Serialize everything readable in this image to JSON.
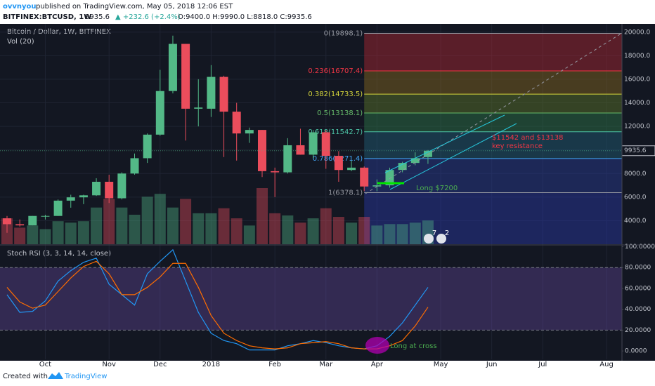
{
  "header": {
    "author": "ovvnyou",
    "published": "published on TradingView.com, May 05, 2018 12:06 EST",
    "symbol": "BITFINEX:BTCUSD, 1W",
    "price": "9935.6",
    "change": "▲ +232.6 (+2.4%)",
    "ohlc": "O:9400.0 H:9990.0 L:8818.0 C:9935.6"
  },
  "footer": {
    "created": "Created with",
    "brand": "TradingView"
  },
  "chart_data": [
    {
      "type": "candlestick",
      "title": "Bitcoin / Dollar, 1W, BITFINEX",
      "volume_label": "Vol (20)",
      "open": [
        4200,
        3700,
        3600,
        4400,
        4400,
        5700,
        5980,
        6150,
        7300,
        5900,
        8000,
        9300,
        11300,
        15000,
        19000,
        13500,
        13500,
        16200,
        13250,
        11400,
        11700,
        8200,
        8100,
        10400,
        9600,
        11500,
        9500,
        8300,
        8500,
        6900,
        7000,
        8300,
        8900,
        9400
      ],
      "high": [
        4400,
        4100,
        4400,
        4500,
        5800,
        6200,
        6200,
        7600,
        7900,
        8100,
        9700,
        11400,
        16800,
        19700,
        19000,
        16000,
        17200,
        16300,
        14000,
        11900,
        11700,
        8500,
        11000,
        11800,
        11700,
        11700,
        9900,
        9100,
        8600,
        7500,
        8500,
        9000,
        9800,
        9990
      ],
      "low": [
        2970,
        3500,
        3600,
        4100,
        4400,
        5100,
        5400,
        6100,
        5500,
        5800,
        7900,
        8900,
        11200,
        14800,
        10800,
        12000,
        12800,
        9400,
        9100,
        10600,
        7700,
        6000,
        8000,
        9600,
        9300,
        8400,
        7300,
        8200,
        6500,
        6500,
        6800,
        8100,
        8700,
        8818
      ],
      "close": [
        3700,
        3600,
        4400,
        4400,
        5700,
        5980,
        6150,
        7300,
        5900,
        8000,
        9300,
        11300,
        15000,
        19000,
        13500,
        13600,
        16200,
        13250,
        11400,
        11700,
        8200,
        8100,
        10400,
        9600,
        11500,
        9500,
        8300,
        8500,
        6900,
        7000,
        8300,
        8900,
        9300,
        9935.6
      ],
      "volume": [
        36,
        23,
        26,
        21,
        32,
        30,
        32,
        51,
        63,
        51,
        41,
        66,
        70,
        51,
        63,
        43,
        43,
        50,
        36,
        26,
        78,
        43,
        40,
        30,
        36,
        50,
        38,
        30,
        38,
        26,
        28,
        28,
        30,
        33
      ],
      "up_color": "#53b987",
      "down_color": "#eb4d5c",
      "ylim": [
        2000,
        20700
      ],
      "yticks": [
        {
          "value": 4000,
          "label": "4000.0"
        },
        {
          "value": 6000,
          "label": "6000.0"
        },
        {
          "value": 8000,
          "label": "8000.0"
        },
        {
          "value": 10000,
          "label": "10000.0"
        },
        {
          "value": 12000,
          "label": "12000.0"
        },
        {
          "value": 14000,
          "label": "14000.0"
        },
        {
          "value": 16000,
          "label": "16000.0"
        },
        {
          "value": 18000,
          "label": "18000.0"
        },
        {
          "value": 20000,
          "label": "20000.0"
        }
      ],
      "xticks": [
        {
          "value": 3,
          "label": "Oct"
        },
        {
          "value": 8,
          "label": "Nov"
        },
        {
          "value": 12,
          "label": "Dec"
        },
        {
          "value": 16,
          "label": "2018"
        },
        {
          "value": 21,
          "label": "Feb"
        },
        {
          "value": 25,
          "label": "Mar"
        },
        {
          "value": 29,
          "label": "Apr"
        },
        {
          "value": 34,
          "label": "May"
        },
        {
          "value": 38,
          "label": "Jun"
        },
        {
          "value": 42,
          "label": "Jul"
        },
        {
          "value": 47,
          "label": "Aug"
        }
      ],
      "last_price": 9935.6,
      "fib_levels": [
        {
          "value": 19898.1,
          "label": "0(19898.1)",
          "color": "#9598a1",
          "fill": "#b22833"
        },
        {
          "value": 16707.4,
          "label": "0.236(16707.4)",
          "color": "#f23645",
          "fill": "#8a6a1e"
        },
        {
          "value": 14733.5,
          "label": "0.382(14733.5)",
          "color": "#d6d63c",
          "fill": "#5f7a2a"
        },
        {
          "value": 13138.1,
          "label": "0.5(13138.1)",
          "color": "#66bb6a",
          "fill": "#2f7a4a"
        },
        {
          "value": 11542.7,
          "label": "0.618(11542.7)",
          "color": "#4cc3a6",
          "fill": "#22627a"
        },
        {
          "value": 9271.4,
          "label": "0.786(9271.4)",
          "color": "#42a5f5",
          "fill": "#2a3f9a"
        },
        {
          "value": 6378.1,
          "label": "1(6378.1)",
          "color": "#9598a1",
          "fill": "#2a3aa8"
        }
      ],
      "annotations": [
        "$11542 and $13138",
        "key resistance",
        "Long $7200"
      ],
      "events": [
        "7",
        "2"
      ]
    },
    {
      "type": "line",
      "title": "Stoch RSI (3, 3, 14, 14, close)",
      "series": [
        {
          "name": "K",
          "color": "#2196f3",
          "values": [
            54,
            37,
            38,
            48,
            67,
            77,
            85,
            89,
            64,
            54,
            44,
            74,
            86,
            97,
            67,
            37,
            17,
            10,
            7,
            1,
            1,
            1,
            5,
            7,
            10,
            8,
            5,
            3,
            2,
            5,
            14,
            27,
            44,
            61
          ]
        },
        {
          "name": "D",
          "color": "#ff6d00",
          "values": [
            61,
            47,
            41,
            44,
            57,
            70,
            81,
            86,
            74,
            54,
            54,
            61,
            71,
            84,
            84,
            61,
            34,
            17,
            10,
            5,
            3,
            2,
            3,
            7,
            8,
            9,
            7,
            3,
            2,
            2,
            5,
            10,
            24,
            42
          ]
        }
      ],
      "ylim": [
        -8,
        101
      ],
      "band": [
        20,
        80
      ],
      "yticks": [
        {
          "value": 0,
          "label": "0.0000"
        },
        {
          "value": 20,
          "label": "20.0000"
        },
        {
          "value": 40,
          "label": "40.0000"
        },
        {
          "value": 60,
          "label": "60.0000"
        },
        {
          "value": 80,
          "label": "80.0000"
        },
        {
          "value": 100,
          "label": "100.0000"
        }
      ],
      "annotation": "Long at cross"
    }
  ]
}
